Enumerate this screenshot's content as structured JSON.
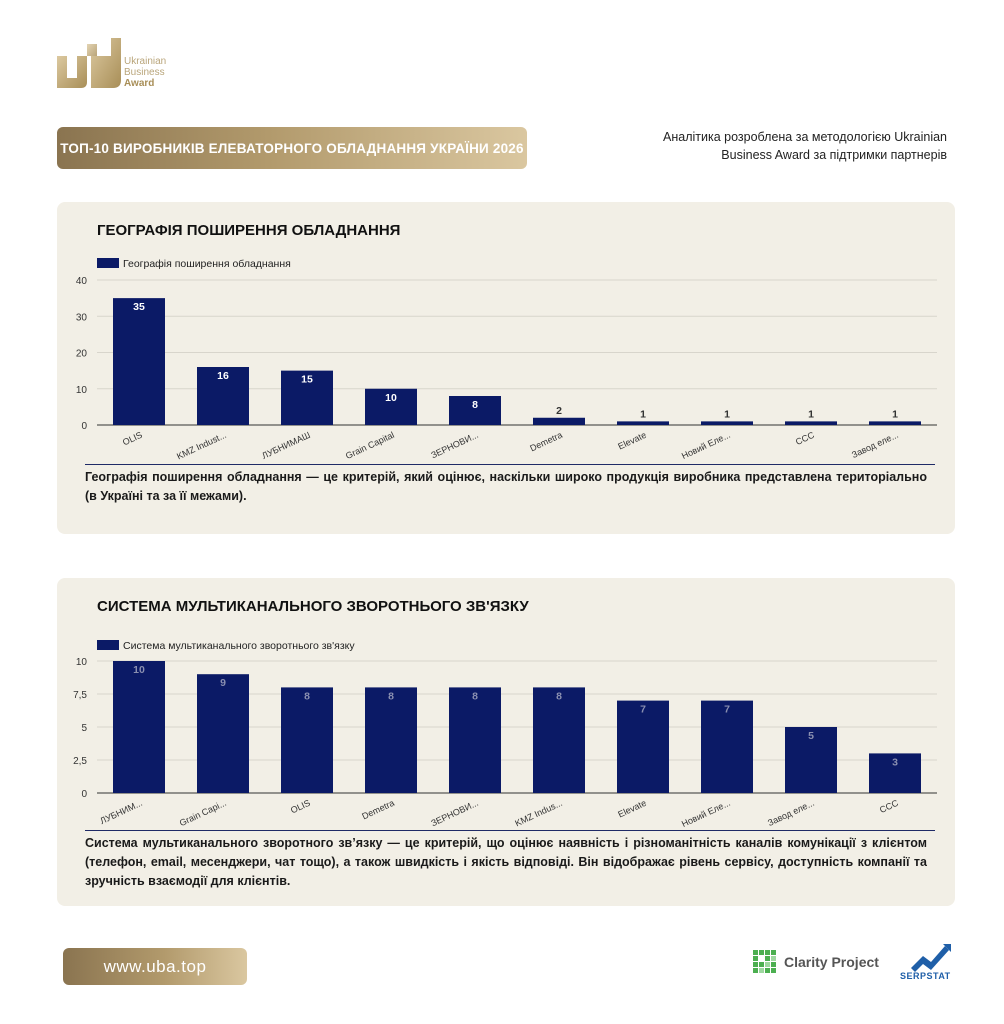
{
  "logo": {
    "line1": "Ukrainian",
    "line2": "Business",
    "line3": "Award"
  },
  "header": {
    "title": "ТОП-10 ВИРОБНИКІВ ЕЛЕВАТОРНОГО ОБЛАДНАННЯ УКРАЇНИ 2026",
    "note": "Аналітика розроблена за методологією Ukrainian Business Award за підтримки партнерів"
  },
  "colors": {
    "bar": "#0b1a66",
    "gold": "#b29a6c",
    "card": "#f2efe6"
  },
  "chart_data": [
    {
      "type": "bar",
      "title": "ГЕОГРАФІЯ ПОШИРЕННЯ ОБЛАДНАННЯ",
      "legend": "Географія поширення обладнання",
      "categories": [
        "OLIS",
        "KMZ Indust...",
        "ЛУБНИМАШ",
        "Grain Capital",
        "ЗЕРНОВИ...",
        "Demetra",
        "Elevate",
        "Новий Еле...",
        "CCC",
        "Завод еле..."
      ],
      "values": [
        35,
        16,
        15,
        10,
        8,
        2,
        1,
        1,
        1,
        1
      ],
      "ylim": [
        0,
        40
      ],
      "yticks": [
        "0",
        "10",
        "20",
        "30",
        "40"
      ],
      "grid": true,
      "legend_position": "top-left",
      "description": "Географія поширення обладнання — це критерій, який оцінює, наскільки широко продукція виробника представлена територіально (в Україні та за її межами)."
    },
    {
      "type": "bar",
      "title": "СИСТЕМА МУЛЬТИКАНАЛЬНОГО ЗВОРОТНЬОГО ЗВ'ЯЗКУ",
      "legend": "Система мультиканального зворотнього зв'язку",
      "categories": [
        "ЛУБНИМ...",
        "Grain Capi...",
        "OLIS",
        "Demetra",
        "ЗЕРНОВИ...",
        "KMZ Indus...",
        "Elevate",
        "Новий Еле...",
        "Завод еле...",
        "CCC"
      ],
      "values": [
        10,
        9,
        8,
        8,
        8,
        8,
        7,
        7,
        5,
        3
      ],
      "ylim": [
        0,
        10
      ],
      "yticks": [
        "0",
        "2,5",
        "5",
        "7,5",
        "10"
      ],
      "grid": true,
      "legend_position": "top-left",
      "description": "Система мультиканального зворотного зв’язку — це критерій, що оцінює наявність і різноманітність каналів комунікації з клієнтом (телефон, email, месенджери, чат тощо), а також швидкість і якість відповіді. Він відображає рівень сервісу, доступність компанії та зручність взаємодії для клієнтів."
    }
  ],
  "footer": {
    "url": "www.uba.top",
    "partner1": "Clarity Project",
    "partner2": "SERPSTAT"
  }
}
